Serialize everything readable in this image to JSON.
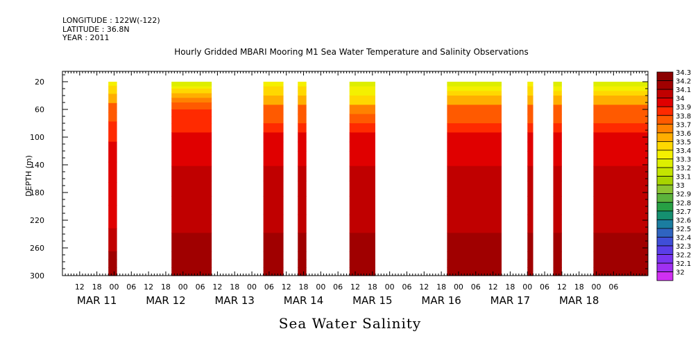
{
  "header": {
    "longitude": "LONGITUDE : 122W(-122)",
    "latitude": "LATITUDE : 36.8N",
    "year": "YEAR : 2011"
  },
  "title": "Hourly Gridded MBARI Mooring M1 Sea Water Temperature and Salinity Observations",
  "bottom_title": "Sea Water Salinity",
  "chart_data": {
    "type": "heatmap",
    "title": "Hourly Gridded MBARI Mooring M1 Sea Water Temperature and Salinity Observations",
    "variable": "Sea Water Salinity",
    "ylabel": "DEPTH (m)",
    "y_reversed": true,
    "ylim": [
      300,
      5
    ],
    "y_ticks": [
      20,
      60,
      100,
      140,
      180,
      220,
      260,
      300
    ],
    "x_range_hours": [
      0,
      204
    ],
    "x_hour_ticks": [
      "12",
      "18",
      "00",
      "06",
      "12",
      "18",
      "00",
      "06",
      "12",
      "18",
      "00",
      "06",
      "12",
      "18",
      "00",
      "06",
      "12",
      "18",
      "00",
      "06",
      "12",
      "18",
      "00",
      "06",
      "12",
      "18",
      "00",
      "06",
      "12",
      "18",
      "00",
      "06"
    ],
    "x_date_labels": [
      "MAR 11",
      "MAR 12",
      "MAR 13",
      "MAR 14",
      "MAR 15",
      "MAR 16",
      "MAR 17",
      "MAR 18"
    ],
    "colorbar": {
      "levels": [
        34.3,
        34.2,
        34.1,
        34,
        33.9,
        33.8,
        33.7,
        33.6,
        33.5,
        33.4,
        33.3,
        33.2,
        33.1,
        33,
        32.9,
        32.8,
        32.7,
        32.6,
        32.5,
        32.4,
        32.3,
        32.2,
        32.1,
        32
      ],
      "colors": [
        "#8b0000",
        "#a00000",
        "#c00000",
        "#e00000",
        "#ff2a00",
        "#ff5a00",
        "#ff8200",
        "#ffae00",
        "#ffd800",
        "#f4f000",
        "#ddee00",
        "#c4e400",
        "#a8d400",
        "#8cc432",
        "#5bb33c",
        "#27a044",
        "#159070",
        "#1b7da0",
        "#2f64c0",
        "#3f4ed8",
        "#5a3ee8",
        "#7a35f0",
        "#a030f2",
        "#d030f2"
      ]
    },
    "data_blocks": [
      {
        "start_hour": 16,
        "end_hour": 19,
        "profile": [
          {
            "depth": 20,
            "salinity": 33.4
          },
          {
            "depth": 55,
            "salinity": 33.8
          },
          {
            "depth": 100,
            "salinity": 34.0
          },
          {
            "depth": 230,
            "salinity": 34.1
          },
          {
            "depth": 300,
            "salinity": 34.3
          }
        ]
      },
      {
        "start_hour": 38,
        "end_hour": 52,
        "profile": [
          {
            "depth": 20,
            "salinity": 33.3
          },
          {
            "depth": 40,
            "salinity": 33.6
          },
          {
            "depth": 60,
            "salinity": 33.9
          },
          {
            "depth": 100,
            "salinity": 34.0
          },
          {
            "depth": 140,
            "salinity": 34.1
          },
          {
            "depth": 230,
            "salinity": 34.2
          },
          {
            "depth": 300,
            "salinity": 34.3
          }
        ]
      },
      {
        "start_hour": 70,
        "end_hour": 77,
        "profile": [
          {
            "depth": 20,
            "salinity": 33.4
          },
          {
            "depth": 60,
            "salinity": 33.8
          },
          {
            "depth": 100,
            "salinity": 34.0
          },
          {
            "depth": 140,
            "salinity": 34.1
          },
          {
            "depth": 230,
            "salinity": 34.2
          },
          {
            "depth": 300,
            "salinity": 34.3
          }
        ]
      },
      {
        "start_hour": 82,
        "end_hour": 85,
        "profile": [
          {
            "depth": 20,
            "salinity": 33.4
          },
          {
            "depth": 60,
            "salinity": 33.8
          },
          {
            "depth": 100,
            "salinity": 34.0
          },
          {
            "depth": 140,
            "salinity": 34.1
          },
          {
            "depth": 230,
            "salinity": 34.2
          },
          {
            "depth": 300,
            "salinity": 34.3
          }
        ]
      },
      {
        "start_hour": 100,
        "end_hour": 109,
        "profile": [
          {
            "depth": 20,
            "salinity": 33.3
          },
          {
            "depth": 60,
            "salinity": 33.7
          },
          {
            "depth": 100,
            "salinity": 34.0
          },
          {
            "depth": 140,
            "salinity": 34.1
          },
          {
            "depth": 230,
            "salinity": 34.2
          },
          {
            "depth": 300,
            "salinity": 34.3
          }
        ]
      },
      {
        "start_hour": 134,
        "end_hour": 153,
        "profile": [
          {
            "depth": 20,
            "salinity": 33.3
          },
          {
            "depth": 60,
            "salinity": 33.8
          },
          {
            "depth": 100,
            "salinity": 34.0
          },
          {
            "depth": 140,
            "salinity": 34.1
          },
          {
            "depth": 230,
            "salinity": 34.2
          },
          {
            "depth": 300,
            "salinity": 34.3
          }
        ]
      },
      {
        "start_hour": 162,
        "end_hour": 164,
        "profile": [
          {
            "depth": 20,
            "salinity": 33.4
          },
          {
            "depth": 60,
            "salinity": 33.8
          },
          {
            "depth": 100,
            "salinity": 34.0
          },
          {
            "depth": 140,
            "salinity": 34.1
          },
          {
            "depth": 230,
            "salinity": 34.2
          },
          {
            "depth": 300,
            "salinity": 34.3
          }
        ]
      },
      {
        "start_hour": 171,
        "end_hour": 174,
        "profile": [
          {
            "depth": 20,
            "salinity": 33.3
          },
          {
            "depth": 60,
            "salinity": 33.8
          },
          {
            "depth": 100,
            "salinity": 34.0
          },
          {
            "depth": 140,
            "salinity": 34.1
          },
          {
            "depth": 230,
            "salinity": 34.2
          },
          {
            "depth": 300,
            "salinity": 34.3
          }
        ]
      },
      {
        "start_hour": 185,
        "end_hour": 205,
        "profile": [
          {
            "depth": 20,
            "salinity": 33.3
          },
          {
            "depth": 60,
            "salinity": 33.8
          },
          {
            "depth": 100,
            "salinity": 34.0
          },
          {
            "depth": 140,
            "salinity": 34.1
          },
          {
            "depth": 230,
            "salinity": 34.2
          },
          {
            "depth": 300,
            "salinity": 34.3
          }
        ]
      }
    ]
  }
}
